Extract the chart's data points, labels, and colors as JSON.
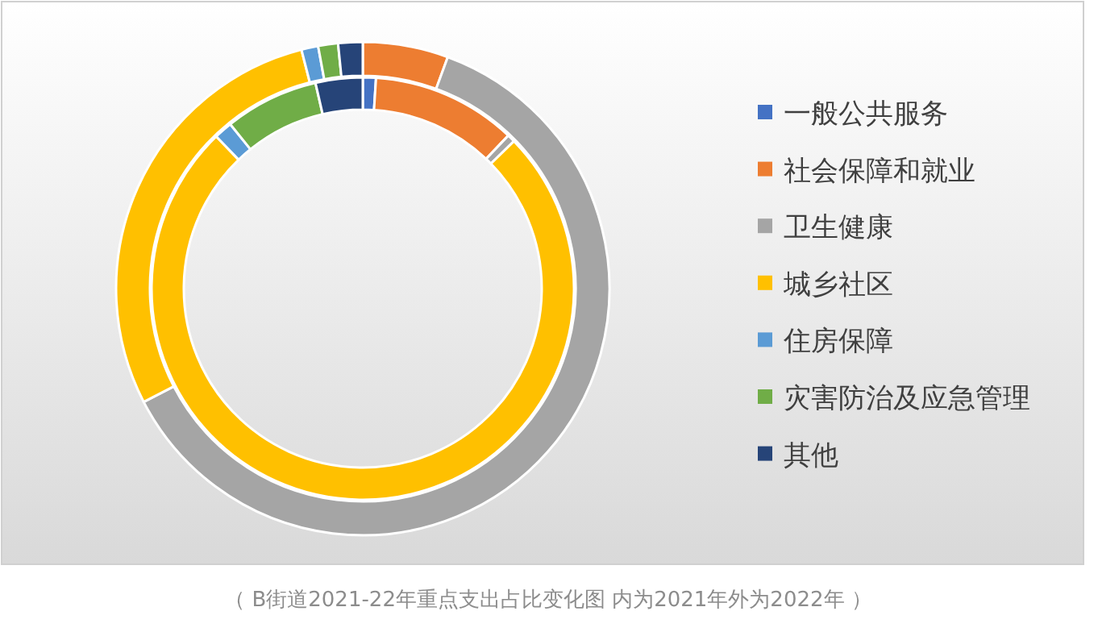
{
  "chart_data": {
    "type": "donut",
    "categories": [
      "一般公共服务",
      "社会保障和就业",
      "卫生健康",
      "城乡社区",
      "住房保障",
      "灾害防治及应急管理",
      "其他"
    ],
    "colors": [
      "#4472c4",
      "#ed7d31",
      "#a5a5a5",
      "#ffc000",
      "#5b9bd5",
      "#70ad47",
      "#264478"
    ],
    "series": [
      {
        "values": [
          1.0,
          11.1,
          0.6,
          75.1,
          1.4,
          7.2,
          3.6
        ]
      },
      {
        "values": [
          null,
          5.6,
          61.8,
          28.6,
          1.1,
          1.3,
          1.6
        ]
      }
    ],
    "legend": "right",
    "annotations": [
      "（ B街道2021-22年重点支出占比变化图 内为2021年外为2022年 ）"
    ]
  }
}
